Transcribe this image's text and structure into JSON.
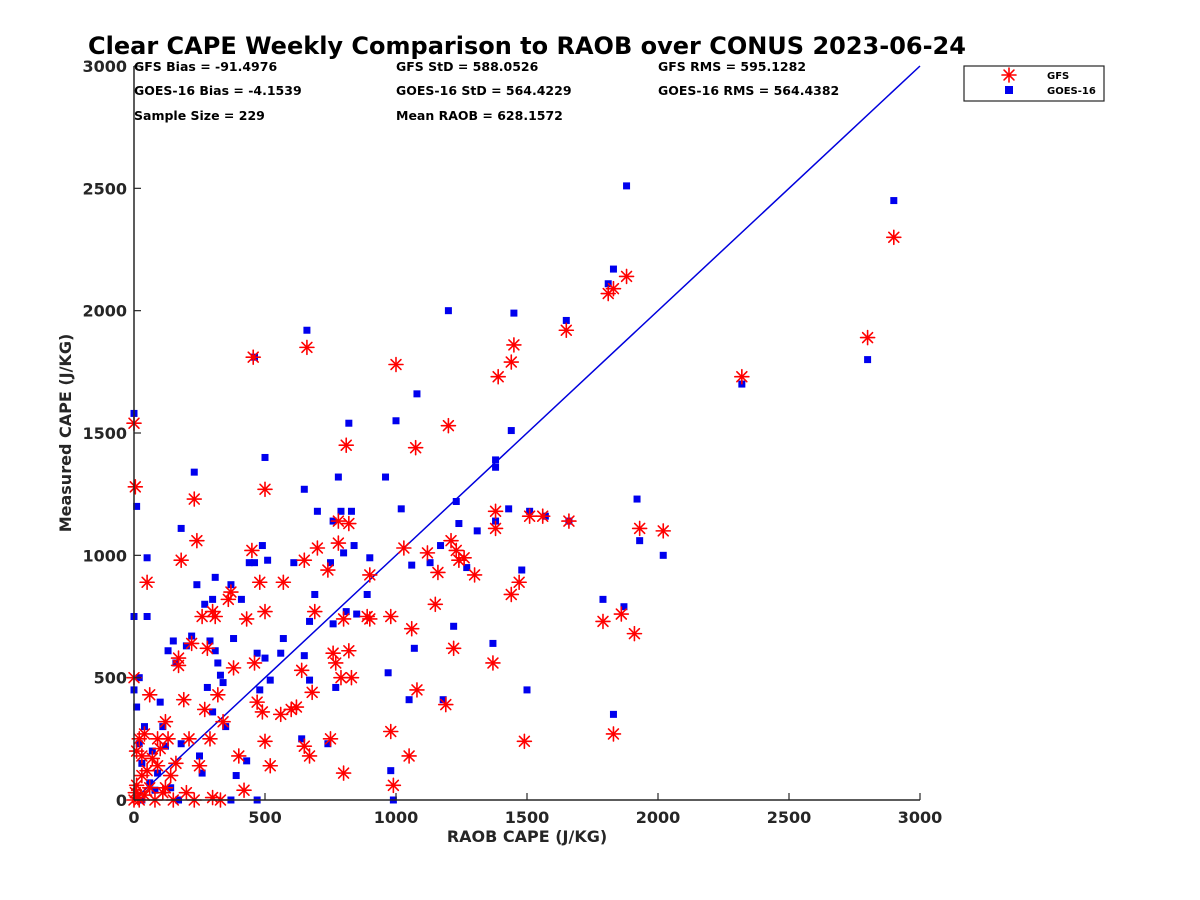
{
  "chart_data": {
    "type": "scatter",
    "title": "Clear CAPE Weekly Comparison to RAOB over CONUS 2023-06-24",
    "xlabel": "RAOB CAPE (J/KG)",
    "ylabel": "Measured CAPE (J/KG)",
    "xlim": [
      0,
      3000
    ],
    "ylim": [
      0,
      3000
    ],
    "xticks": [
      "0",
      "500",
      "1000",
      "1500",
      "2000",
      "2500",
      "3000"
    ],
    "yticks": [
      "0",
      "500",
      "1000",
      "1500",
      "2000",
      "2500",
      "3000"
    ],
    "grid": false,
    "legend_position": "top-right",
    "reference_line": {
      "x": [
        0,
        3000
      ],
      "y": [
        0,
        3000
      ],
      "color": "#0000dd"
    },
    "annotations": [
      "GFS Bias = -91.4976",
      "GFS StD = 588.0526",
      "GFS RMS = 595.1282",
      "GOES-16 Bias = -4.1539",
      "GOES-16 StD = 564.4229",
      "GOES-16 RMS = 564.4382",
      "Sample Size = 229",
      "Mean RAOB = 628.1572"
    ],
    "series": [
      {
        "name": "GFS",
        "marker": "asterisk",
        "color": "#ff0000",
        "points": [
          [
            0,
            1540
          ],
          [
            5,
            1280
          ],
          [
            0,
            500
          ],
          [
            10,
            200
          ],
          [
            20,
            250
          ],
          [
            30,
            180
          ],
          [
            40,
            270
          ],
          [
            50,
            120
          ],
          [
            60,
            430
          ],
          [
            50,
            890
          ],
          [
            0,
            0
          ],
          [
            5,
            30
          ],
          [
            10,
            60
          ],
          [
            15,
            10
          ],
          [
            20,
            0
          ],
          [
            30,
            100
          ],
          [
            40,
            20
          ],
          [
            60,
            50
          ],
          [
            70,
            170
          ],
          [
            80,
            0
          ],
          [
            90,
            140
          ],
          [
            100,
            210
          ],
          [
            110,
            30
          ],
          [
            120,
            320
          ],
          [
            130,
            250
          ],
          [
            140,
            100
          ],
          [
            150,
            0
          ],
          [
            160,
            150
          ],
          [
            170,
            580
          ],
          [
            170,
            550
          ],
          [
            180,
            980
          ],
          [
            190,
            410
          ],
          [
            200,
            30
          ],
          [
            210,
            250
          ],
          [
            220,
            640
          ],
          [
            230,
            1230
          ],
          [
            240,
            1060
          ],
          [
            250,
            140
          ],
          [
            260,
            750
          ],
          [
            270,
            370
          ],
          [
            280,
            620
          ],
          [
            290,
            250
          ],
          [
            300,
            770
          ],
          [
            310,
            750
          ],
          [
            320,
            430
          ],
          [
            330,
            0
          ],
          [
            340,
            320
          ],
          [
            360,
            820
          ],
          [
            370,
            850
          ],
          [
            380,
            540
          ],
          [
            400,
            180
          ],
          [
            420,
            40
          ],
          [
            430,
            740
          ],
          [
            450,
            1020
          ],
          [
            455,
            1810
          ],
          [
            460,
            560
          ],
          [
            470,
            400
          ],
          [
            480,
            890
          ],
          [
            490,
            360
          ],
          [
            500,
            1270
          ],
          [
            500,
            770
          ],
          [
            500,
            240
          ],
          [
            520,
            140
          ],
          [
            560,
            350
          ],
          [
            570,
            890
          ],
          [
            600,
            370
          ],
          [
            620,
            380
          ],
          [
            640,
            530
          ],
          [
            650,
            220
          ],
          [
            650,
            980
          ],
          [
            660,
            1850
          ],
          [
            670,
            180
          ],
          [
            680,
            440
          ],
          [
            690,
            770
          ],
          [
            700,
            1030
          ],
          [
            740,
            940
          ],
          [
            750,
            250
          ],
          [
            760,
            600
          ],
          [
            770,
            560
          ],
          [
            780,
            1050
          ],
          [
            780,
            1140
          ],
          [
            790,
            500
          ],
          [
            800,
            740
          ],
          [
            800,
            110
          ],
          [
            810,
            1450
          ],
          [
            820,
            610
          ],
          [
            820,
            1130
          ],
          [
            830,
            500
          ],
          [
            890,
            750
          ],
          [
            900,
            740
          ],
          [
            900,
            920
          ],
          [
            980,
            750
          ],
          [
            980,
            280
          ],
          [
            990,
            60
          ],
          [
            1000,
            1780
          ],
          [
            1030,
            1030
          ],
          [
            1050,
            180
          ],
          [
            1060,
            700
          ],
          [
            1075,
            1440
          ],
          [
            1080,
            450
          ],
          [
            1120,
            1010
          ],
          [
            1150,
            800
          ],
          [
            1160,
            930
          ],
          [
            1190,
            390
          ],
          [
            1200,
            1530
          ],
          [
            1210,
            1060
          ],
          [
            1220,
            620
          ],
          [
            1230,
            1020
          ],
          [
            1240,
            980
          ],
          [
            1260,
            990
          ],
          [
            1300,
            920
          ],
          [
            1370,
            560
          ],
          [
            1380,
            1110
          ],
          [
            1380,
            1180
          ],
          [
            1390,
            1730
          ],
          [
            1440,
            1790
          ],
          [
            1450,
            1860
          ],
          [
            1440,
            840
          ],
          [
            1470,
            890
          ],
          [
            1490,
            240
          ],
          [
            1510,
            1160
          ],
          [
            1560,
            1160
          ],
          [
            1650,
            1920
          ],
          [
            1660,
            1140
          ],
          [
            1790,
            730
          ],
          [
            1810,
            2070
          ],
          [
            1830,
            2090
          ],
          [
            1830,
            270
          ],
          [
            1860,
            760
          ],
          [
            1880,
            2140
          ],
          [
            1910,
            680
          ],
          [
            1930,
            1110
          ],
          [
            2020,
            1100
          ],
          [
            2320,
            1730
          ],
          [
            2800,
            1890
          ],
          [
            2900,
            2300
          ],
          [
            230,
            0
          ],
          [
            300,
            10
          ],
          [
            120,
            50
          ],
          [
            90,
            250
          ]
        ]
      },
      {
        "name": "GOES-16",
        "marker": "square",
        "color": "#0000ee",
        "points": [
          [
            0,
            1580
          ],
          [
            10,
            1200
          ],
          [
            0,
            750
          ],
          [
            50,
            750
          ],
          [
            50,
            990
          ],
          [
            0,
            450
          ],
          [
            20,
            500
          ],
          [
            10,
            380
          ],
          [
            20,
            230
          ],
          [
            30,
            150
          ],
          [
            40,
            300
          ],
          [
            60,
            70
          ],
          [
            70,
            200
          ],
          [
            80,
            40
          ],
          [
            90,
            110
          ],
          [
            100,
            400
          ],
          [
            110,
            300
          ],
          [
            120,
            220
          ],
          [
            130,
            610
          ],
          [
            140,
            50
          ],
          [
            150,
            650
          ],
          [
            160,
            560
          ],
          [
            170,
            0
          ],
          [
            180,
            230
          ],
          [
            180,
            1110
          ],
          [
            200,
            630
          ],
          [
            220,
            670
          ],
          [
            230,
            1340
          ],
          [
            240,
            880
          ],
          [
            250,
            180
          ],
          [
            260,
            110
          ],
          [
            270,
            800
          ],
          [
            280,
            460
          ],
          [
            290,
            650
          ],
          [
            300,
            820
          ],
          [
            300,
            360
          ],
          [
            310,
            910
          ],
          [
            310,
            610
          ],
          [
            320,
            560
          ],
          [
            330,
            510
          ],
          [
            340,
            480
          ],
          [
            350,
            300
          ],
          [
            370,
            880
          ],
          [
            380,
            660
          ],
          [
            390,
            100
          ],
          [
            410,
            820
          ],
          [
            430,
            160
          ],
          [
            440,
            970
          ],
          [
            460,
            970
          ],
          [
            460,
            1810
          ],
          [
            470,
            600
          ],
          [
            480,
            450
          ],
          [
            490,
            1040
          ],
          [
            500,
            580
          ],
          [
            500,
            1400
          ],
          [
            510,
            980
          ],
          [
            520,
            490
          ],
          [
            560,
            600
          ],
          [
            570,
            660
          ],
          [
            610,
            970
          ],
          [
            640,
            250
          ],
          [
            650,
            590
          ],
          [
            650,
            1270
          ],
          [
            660,
            1920
          ],
          [
            670,
            490
          ],
          [
            670,
            730
          ],
          [
            690,
            840
          ],
          [
            700,
            1180
          ],
          [
            740,
            230
          ],
          [
            750,
            970
          ],
          [
            760,
            1140
          ],
          [
            760,
            720
          ],
          [
            770,
            460
          ],
          [
            780,
            1320
          ],
          [
            790,
            1180
          ],
          [
            800,
            1010
          ],
          [
            810,
            770
          ],
          [
            820,
            1540
          ],
          [
            830,
            1180
          ],
          [
            840,
            1040
          ],
          [
            850,
            760
          ],
          [
            890,
            840
          ],
          [
            900,
            990
          ],
          [
            960,
            1320
          ],
          [
            970,
            520
          ],
          [
            980,
            120
          ],
          [
            990,
            0
          ],
          [
            1000,
            1550
          ],
          [
            1020,
            1190
          ],
          [
            1050,
            410
          ],
          [
            1060,
            960
          ],
          [
            1070,
            620
          ],
          [
            1080,
            1660
          ],
          [
            1130,
            970
          ],
          [
            1170,
            1040
          ],
          [
            1180,
            410
          ],
          [
            1200,
            2000
          ],
          [
            1220,
            710
          ],
          [
            1230,
            1220
          ],
          [
            1240,
            1130
          ],
          [
            1270,
            950
          ],
          [
            1310,
            1100
          ],
          [
            1370,
            640
          ],
          [
            1380,
            1390
          ],
          [
            1380,
            1360
          ],
          [
            1380,
            1140
          ],
          [
            1430,
            1190
          ],
          [
            1440,
            1510
          ],
          [
            1450,
            1990
          ],
          [
            1480,
            940
          ],
          [
            1500,
            450
          ],
          [
            1510,
            1180
          ],
          [
            1570,
            1160
          ],
          [
            1650,
            1960
          ],
          [
            1660,
            1140
          ],
          [
            1790,
            820
          ],
          [
            1810,
            2110
          ],
          [
            1830,
            350
          ],
          [
            1830,
            2170
          ],
          [
            1870,
            790
          ],
          [
            1880,
            2510
          ],
          [
            1920,
            1230
          ],
          [
            1930,
            1060
          ],
          [
            2020,
            1000
          ],
          [
            2320,
            1700
          ],
          [
            2800,
            1800
          ],
          [
            2900,
            2450
          ],
          [
            470,
            0
          ],
          [
            370,
            0
          ],
          [
            30,
            0
          ]
        ]
      }
    ]
  }
}
